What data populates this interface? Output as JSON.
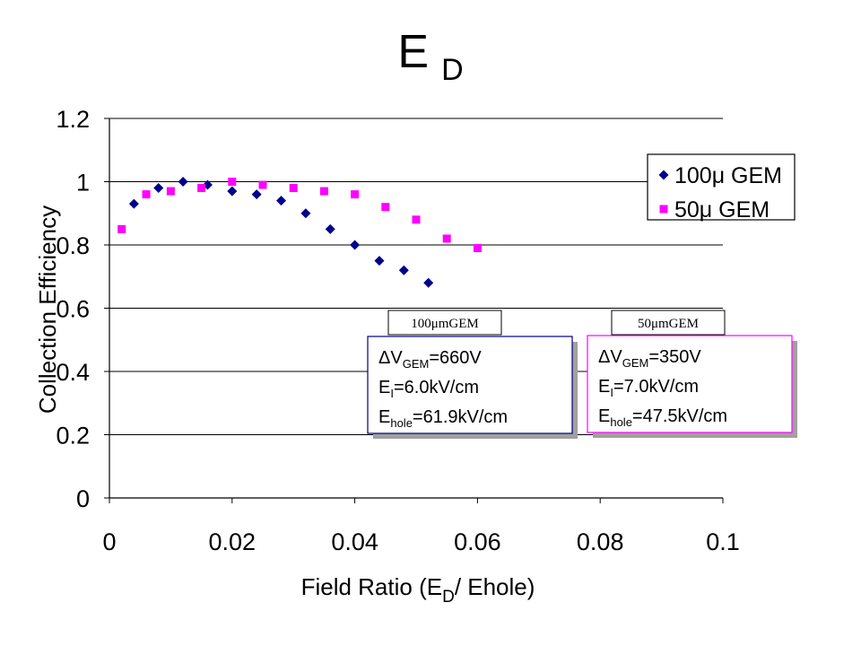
{
  "title": {
    "main": "E",
    "sub": "D"
  },
  "chart_data": {
    "type": "scatter",
    "xlabel_parts": [
      "Field Ratio (E",
      "D",
      "/ Ehole)"
    ],
    "ylabel": "Collection Efficiency",
    "xlim": [
      0,
      0.1
    ],
    "ylim": [
      0,
      1.2
    ],
    "x_ticks": [
      "0",
      "0.02",
      "0.04",
      "0.06",
      "0.08",
      "0.1"
    ],
    "y_ticks": [
      "0",
      "0.2",
      "0.4",
      "0.6",
      "0.8",
      "1",
      "1.2"
    ],
    "x_tick_values": [
      0,
      0.02,
      0.04,
      0.06,
      0.08,
      0.1
    ],
    "y_tick_values": [
      0,
      0.2,
      0.4,
      0.6,
      0.8,
      1.0,
      1.2
    ],
    "grid": "horizontal",
    "legend_position": "top-right",
    "series": [
      {
        "name": "100μ GEM",
        "marker": "diamond",
        "color": "#00008B",
        "x": [
          0.004,
          0.008,
          0.012,
          0.016,
          0.02,
          0.024,
          0.028,
          0.032,
          0.036,
          0.04,
          0.044,
          0.048,
          0.052
        ],
        "y": [
          0.93,
          0.98,
          1.0,
          0.99,
          0.97,
          0.96,
          0.94,
          0.9,
          0.85,
          0.8,
          0.75,
          0.72,
          0.68
        ]
      },
      {
        "name": "50μ GEM",
        "marker": "square",
        "color": "#FF00FF",
        "x": [
          0.002,
          0.006,
          0.01,
          0.015,
          0.02,
          0.025,
          0.03,
          0.035,
          0.04,
          0.045,
          0.05,
          0.055,
          0.06
        ],
        "y": [
          0.85,
          0.96,
          0.97,
          0.98,
          1.0,
          0.99,
          0.98,
          0.97,
          0.96,
          0.92,
          0.88,
          0.82,
          0.79
        ]
      }
    ],
    "annotations": [
      {
        "tag": "100μmGEM",
        "lines": [
          {
            "main": "ΔV",
            "sub": "GEM",
            "rest": "=660V"
          },
          {
            "main": "E",
            "sub": "I",
            "rest": "=6.0kV/cm"
          },
          {
            "main": "E",
            "sub": "hole",
            "rest": "=61.9kV/cm"
          }
        ],
        "border_color": "#000080"
      },
      {
        "tag": "50μmGEM",
        "lines": [
          {
            "main": "ΔV",
            "sub": "GEM",
            "rest": "=350V"
          },
          {
            "main": "E",
            "sub": "I",
            "rest": "=7.0kV/cm"
          },
          {
            "main": "E",
            "sub": "hole",
            "rest": "=47.5kV/cm"
          }
        ],
        "border_color": "#FF00FF"
      }
    ]
  }
}
